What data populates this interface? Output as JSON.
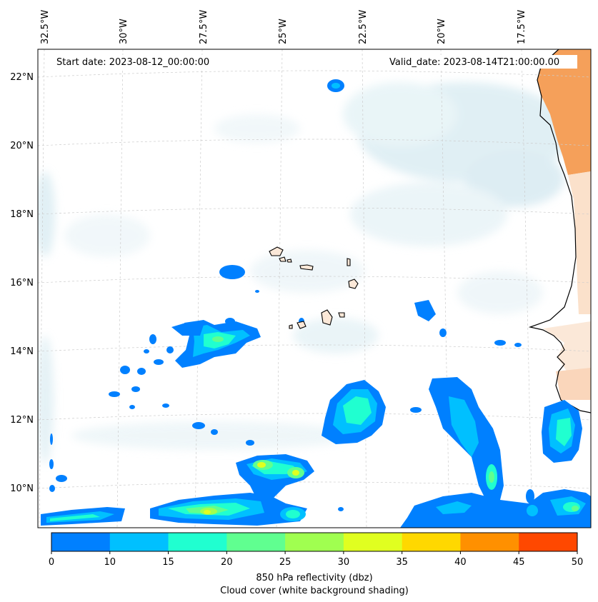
{
  "map": {
    "start_label": "Start date: 2023-08-12_00:00:00",
    "valid_label": "Valid_date: 2023-08-14T21:00:00.00",
    "lon_ticks": [
      "32.5°W",
      "30°W",
      "27.5°W",
      "25°W",
      "22.5°W",
      "20°W",
      "17.5°W"
    ],
    "lat_ticks": [
      "22°N",
      "20°N",
      "18°N",
      "16°N",
      "14°N",
      "12°N",
      "10°N"
    ],
    "colorbar": {
      "ticks": [
        "0",
        "10",
        "15",
        "20",
        "25",
        "30",
        "35",
        "40",
        "45",
        "50"
      ],
      "colors": [
        "#0080ff",
        "#00c0ff",
        "#20ffd0",
        "#60ff90",
        "#a0ff50",
        "#e0ff20",
        "#ffd800",
        "#ff9000",
        "#ff4800"
      ],
      "label_line1": "850 hPa reflectivity (dbz)",
      "label_line2": "Cloud cover (white background shading)"
    },
    "land_color": "#f5a05a",
    "cloud_shade_color": "#add8e6"
  }
}
